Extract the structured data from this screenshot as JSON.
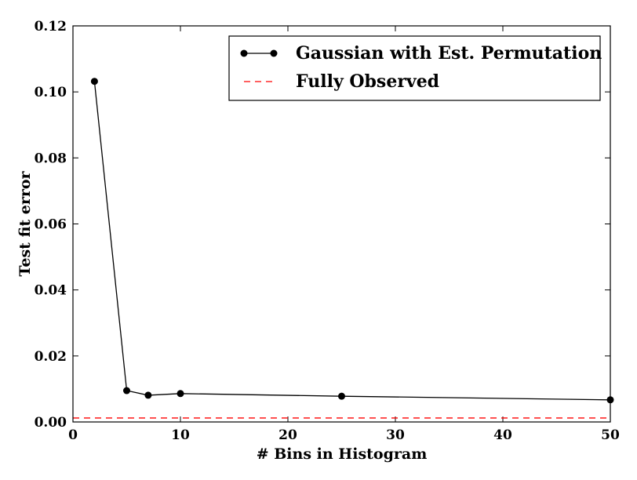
{
  "chart_data": {
    "type": "line",
    "xlabel": "# Bins in Histogram",
    "ylabel": "Test fit error",
    "xlim": [
      0,
      50
    ],
    "ylim": [
      0,
      0.12
    ],
    "xticks": [
      "0",
      "10",
      "20",
      "30",
      "40",
      "50"
    ],
    "yticks": [
      "0.00",
      "0.02",
      "0.04",
      "0.06",
      "0.08",
      "0.10",
      "0.12"
    ],
    "grid": false,
    "legend_position": "top-right",
    "series": [
      {
        "name": "Gaussian with Est. Permutation",
        "color": "#000000",
        "style": "solid-with-markers",
        "x": [
          2,
          5,
          7,
          10,
          25,
          50
        ],
        "y": [
          0.1032,
          0.0095,
          0.0081,
          0.0086,
          0.0078,
          0.0067
        ]
      },
      {
        "name": "Fully Observed",
        "color": "#ff0000",
        "style": "dashed",
        "x": [
          0,
          50
        ],
        "y": [
          0.0012,
          0.0012
        ]
      }
    ]
  }
}
